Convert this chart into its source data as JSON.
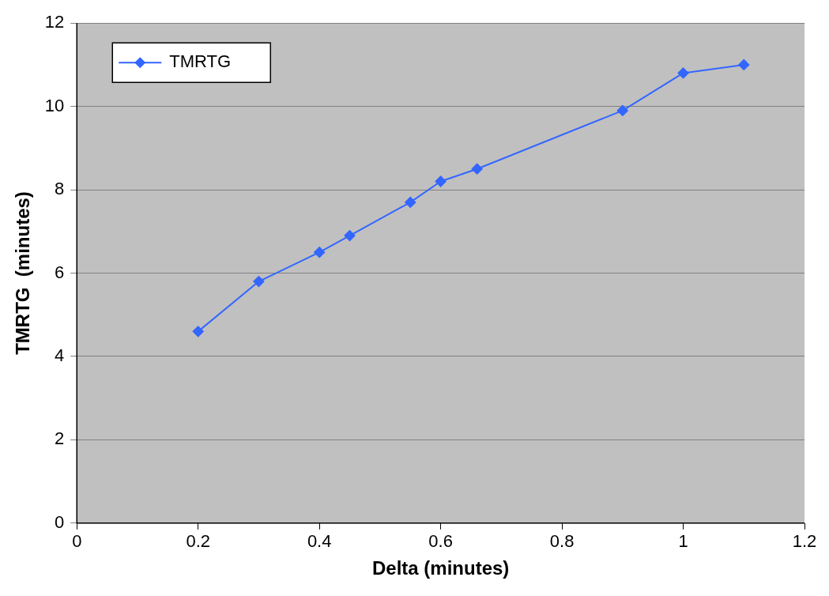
{
  "chart_data": {
    "type": "line",
    "xlabel": "Delta (minutes)",
    "ylabel": "TMRTG  (minutes)",
    "x": [
      0.2,
      0.3,
      0.4,
      0.45,
      0.55,
      0.6,
      0.66,
      0.9,
      1,
      1.1
    ],
    "series": [
      {
        "name": "TMRTG",
        "color": "#3366ff",
        "values": [
          4.6,
          5.8,
          6.5,
          6.9,
          7.7,
          8.2,
          8.5,
          9.9,
          10.8,
          11.0
        ]
      }
    ],
    "xlim": [
      0,
      1.2
    ],
    "xticks": [
      0,
      0.2,
      0.4,
      0.6,
      0.8,
      1,
      1.2
    ],
    "ylim": [
      0,
      12
    ],
    "yticks": [
      0,
      2,
      4,
      6,
      8,
      10,
      12
    ],
    "grid": "y",
    "legend": "top left",
    "marker": "diamond",
    "line_style": "solid"
  }
}
